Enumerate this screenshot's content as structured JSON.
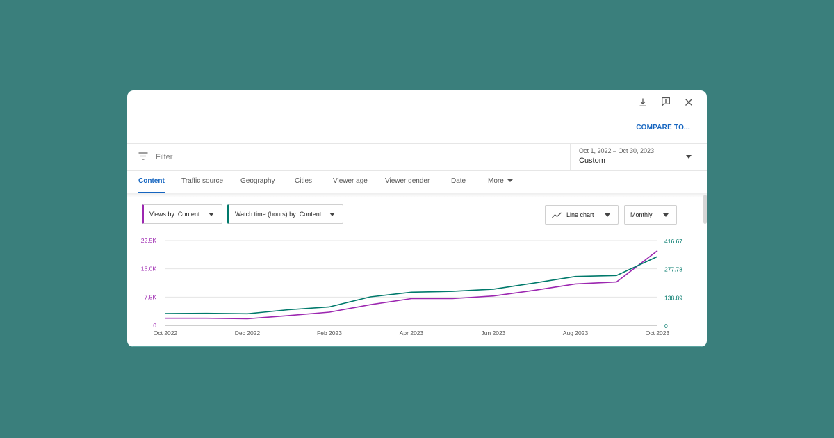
{
  "toolbar": {
    "download_icon": "download-icon",
    "feedback_icon": "feedback-icon",
    "close_icon": "close-icon",
    "compare_label": "COMPARE TO..."
  },
  "filter": {
    "icon": "filter-list-icon",
    "placeholder": "Filter"
  },
  "date_selector": {
    "range": "Oct 1, 2022 – Oct 30, 2023",
    "preset": "Custom"
  },
  "tabs": [
    {
      "label": "Content",
      "active": true
    },
    {
      "label": "Traffic source",
      "active": false
    },
    {
      "label": "Geography",
      "active": false
    },
    {
      "label": "Cities",
      "active": false
    },
    {
      "label": "Viewer age",
      "active": false
    },
    {
      "label": "Viewer gender",
      "active": false
    },
    {
      "label": "Date",
      "active": false
    },
    {
      "label": "More",
      "active": false
    }
  ],
  "controls": {
    "metric1": "Views by: Content",
    "metric2": "Watch time (hours) by: Content",
    "chart_type": "Line chart",
    "period": "Monthly"
  },
  "colors": {
    "accent": "#1565c0",
    "views": "#9c27b0",
    "watch_time": "#00796b",
    "background": "#3a7f7c"
  },
  "chart_data": {
    "type": "line",
    "x": [
      "Oct 2022",
      "Nov 2022",
      "Dec 2022",
      "Jan 2023",
      "Feb 2023",
      "Mar 2023",
      "Apr 2023",
      "May 2023",
      "Jun 2023",
      "Jul 2023",
      "Aug 2023",
      "Sep 2023",
      "Oct 2023"
    ],
    "x_tick_labels": [
      "Oct 2022",
      "Dec 2022",
      "Feb 2023",
      "Apr 2023",
      "Jun 2023",
      "Aug 2023",
      "Oct 2023"
    ],
    "left_axis": {
      "ticks": [
        "22.5K",
        "15.0K",
        "7.5K",
        "0"
      ],
      "min": 0,
      "max": 22500
    },
    "right_axis": {
      "ticks": [
        "416.67",
        "277.78",
        "138.89",
        "0"
      ],
      "min": 0,
      "max": 416.67
    },
    "series": [
      {
        "name": "Views by: Content",
        "axis": "left",
        "color": "#9c27b0",
        "values": [
          1900,
          1900,
          1750,
          2600,
          3500,
          5500,
          7100,
          7100,
          7800,
          9300,
          11000,
          11500,
          19800
        ]
      },
      {
        "name": "Watch time (hours) by: Content",
        "axis": "right",
        "color": "#00796b",
        "values": [
          58,
          59,
          57,
          77,
          91,
          140,
          163,
          167,
          178,
          208,
          240,
          245,
          338
        ]
      }
    ],
    "grid": true
  }
}
